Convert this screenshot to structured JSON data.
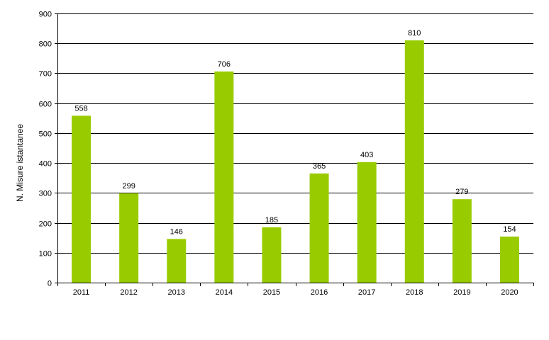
{
  "chart_data": {
    "type": "bar",
    "title": "",
    "xlabel": "",
    "ylabel": "N. Misure istantanee",
    "categories": [
      "2011",
      "2012",
      "2013",
      "2014",
      "2015",
      "2016",
      "2017",
      "2018",
      "2019",
      "2020"
    ],
    "values": [
      558,
      299,
      146,
      706,
      185,
      365,
      403,
      810,
      279,
      154
    ],
    "data_labels": [
      "558",
      "299",
      "146",
      "706",
      "185",
      "365",
      "403",
      "810",
      "279",
      "154"
    ],
    "ylim": [
      0,
      900
    ],
    "yticks": [
      "0",
      "100",
      "200",
      "300",
      "400",
      "500",
      "600",
      "700",
      "800",
      "900"
    ],
    "ytick_values": [
      0,
      100,
      200,
      300,
      400,
      500,
      600,
      700,
      800,
      900
    ],
    "grid": true,
    "legend": "none",
    "bar_color": "#99cc00"
  }
}
